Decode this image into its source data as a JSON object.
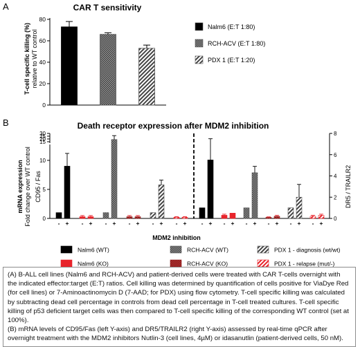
{
  "panel_a": {
    "letter": "A",
    "legend": [
      "Nalm6 (E:T 1:80)",
      "RCH-ACV (E:T 1:80)",
      "PDX 1 (E:T 1:20)"
    ],
    "ylabel_line1": "T-cell specific killing (%)",
    "ylabel_line2": "relative to WT control"
  },
  "panel_b": {
    "letter": "B",
    "ylabel_left_1": "mRNA expression",
    "ylabel_left_2": "Fold change over WT control",
    "ylabel_left_3": "CD95 / Fas",
    "ylabel_right": "DR5 / TRAILR2",
    "legend": [
      "Nalm6 (WT)",
      "RCH-ACV (WT)",
      "PDX 1 - diagnosis (wt/wt)",
      "Nalm6 (KO)",
      "RCH-ACV (KO)",
      "PDX 1 - relapse (mut/-)"
    ]
  },
  "caption": {
    "a": "(A) B-ALL cell lines (Nalm6 and RCH-ACV) and patient-derived cells were treated with CAR T-cells overnight with the indicated effector:target (E:T) ratios. Cell killing was determined by quantification of cells positive for ViaDye Red (for cell lines) or 7-Aminoactinomycin D (7-AAD; for PDX) using flow cytometry. T-cell specific killing was calculated by subtracting dead cell percentage in controls from dead cell percentage in T-cell treated cultures. T-cell specific killing of p53 deficient target cells was then compared to T-cell specific killing of the corresponding WT control (set at 100%).",
    "b": "(B) mRNA levels of CD95/Fas (left Y-axis) and DR5/TRAILR2 (right Y-axis) assessed by real-time qPCR after overnight treatment with the MDM2 inhibitors Nutlin-3 (cell lines, 4µM) or idasanutlin (patient-derived cells, 50 nM)."
  },
  "colors": {
    "black": "#000000",
    "red": "#e8242b",
    "dark_red": "#8b1a1a",
    "gray": "#6e6e6e",
    "hatch_gray": "#555555"
  },
  "chart_data": [
    {
      "type": "bar",
      "title": "CAR T sensitivity",
      "categories": [
        "Nalm6 (E:T 1:80)",
        "RCH-ACV (E:T 1:80)",
        "PDX 1 (E:T 1:20)"
      ],
      "values": [
        73,
        66,
        53
      ],
      "errors": [
        5,
        1.5,
        3
      ],
      "yticks": [
        0,
        20,
        40,
        60,
        80
      ],
      "ylim": [
        0,
        80
      ]
    },
    {
      "type": "bar",
      "title": "Death receptor expression after MDM2 inhibition",
      "xlabel": "MDM2 inhibition",
      "treatment_labels": [
        "-",
        "+"
      ],
      "left_axis": {
        "segments": [
          [
            0,
            12.5
          ],
          [
            15,
            30
          ]
        ],
        "yticks": [
          0,
          5,
          10,
          15,
          20,
          25,
          30
        ]
      },
      "right_axis": {
        "ylim": [
          0,
          8
        ],
        "yticks": [
          0,
          2,
          4,
          6,
          8
        ]
      },
      "groups": [
        {
          "axis": "left",
          "series": "Nalm6 (WT)",
          "values": [
            1.0,
            9.0
          ],
          "errors": [
            0,
            2.2
          ]
        },
        {
          "axis": "left",
          "series": "Nalm6 (KO)",
          "values": [
            0.3,
            0.3
          ],
          "errors": [
            0.2,
            0.2
          ]
        },
        {
          "axis": "left",
          "series": "RCH-ACV (WT)",
          "values": [
            1.0,
            19.0
          ],
          "errors": [
            0,
            7.0
          ]
        },
        {
          "axis": "left",
          "series": "RCH-ACV (KO)",
          "values": [
            0.3,
            0.3
          ],
          "errors": [
            0.2,
            0.2
          ]
        },
        {
          "axis": "left",
          "series": "PDX 1 - diagnosis (wt/wt)",
          "values": [
            1.0,
            5.8
          ],
          "errors": [
            0,
            0.8
          ]
        },
        {
          "axis": "left",
          "series": "PDX 1 - relapse (mut/-)",
          "values": [
            0.2,
            0.2
          ],
          "errors": [
            0.1,
            0.1
          ]
        },
        {
          "axis": "right",
          "series": "Nalm6 (WT)",
          "values": [
            1.0,
            5.5
          ],
          "errors": [
            0,
            2.0
          ]
        },
        {
          "axis": "right",
          "series": "Nalm6 (KO)",
          "values": [
            0.3,
            0.5
          ],
          "errors": [
            0.1,
            0
          ]
        },
        {
          "axis": "right",
          "series": "RCH-ACV (WT)",
          "values": [
            1.0,
            4.3
          ],
          "errors": [
            0,
            0.6
          ]
        },
        {
          "axis": "right",
          "series": "RCH-ACV (KO)",
          "values": [
            0.1,
            0.2
          ],
          "errors": [
            0.05,
            0.1
          ]
        },
        {
          "axis": "right",
          "series": "PDX 1 - diagnosis (wt/wt)",
          "values": [
            1.0,
            2.0
          ],
          "errors": [
            0,
            1.2
          ]
        },
        {
          "axis": "right",
          "series": "PDX 1 - relapse (mut/-)",
          "values": [
            0.2,
            0.3
          ],
          "errors": [
            0.1,
            0.1
          ]
        }
      ]
    }
  ]
}
